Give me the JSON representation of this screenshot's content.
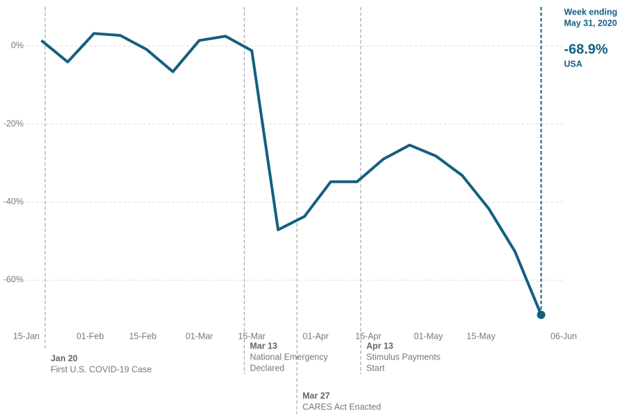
{
  "chart_data": {
    "type": "line",
    "x": [
      "19-Jan",
      "26-Jan",
      "02-Feb",
      "09-Feb",
      "16-Feb",
      "23-Feb",
      "01-Mar",
      "08-Mar",
      "15-Mar",
      "22-Mar",
      "29-Mar",
      "05-Apr",
      "12-Apr",
      "19-Apr",
      "26-Apr",
      "03-May",
      "10-May",
      "17-May",
      "24-May",
      "31-May"
    ],
    "series": [
      {
        "name": "USA",
        "color": "#135f80",
        "values": [
          1.4,
          -4.1,
          3.2,
          2.7,
          -0.9,
          -6.6,
          1.4,
          2.5,
          -1.2,
          -47.1,
          -43.7,
          -34.8,
          -34.8,
          -29.0,
          -25.4,
          -28.2,
          -33.2,
          -41.6,
          -52.6,
          -68.9
        ],
        "end_label": "-68.9%"
      }
    ],
    "end_note": [
      "Week ending",
      "May 31, 2020"
    ],
    "xlim": [
      "15-Jan",
      "06-Jun"
    ],
    "xticks": [
      "15-Jan",
      "01-Feb",
      "15-Feb",
      "01-Mar",
      "15-Mar",
      "01-Apr",
      "15-Apr",
      "01-May",
      "15-May",
      "06-Jun"
    ],
    "ylim": [
      -72,
      10
    ],
    "yticks": [
      {
        "value": 0,
        "label": "0%"
      },
      {
        "value": -20,
        "label": "-20%"
      },
      {
        "value": -40,
        "label": "-40%"
      },
      {
        "value": -60,
        "label": "-60%"
      }
    ],
    "grid": true,
    "events": [
      {
        "date": "Jan 20",
        "text": [
          "First U.S. COVID-19 Case"
        ]
      },
      {
        "date": "Mar 13",
        "text": [
          "National Emergency",
          "Declared"
        ]
      },
      {
        "date": "Mar 27",
        "text": [
          "CARES Act Enacted"
        ]
      },
      {
        "date": "Apr 13",
        "text": [
          "Stimulus Payments",
          "Start"
        ]
      }
    ]
  }
}
